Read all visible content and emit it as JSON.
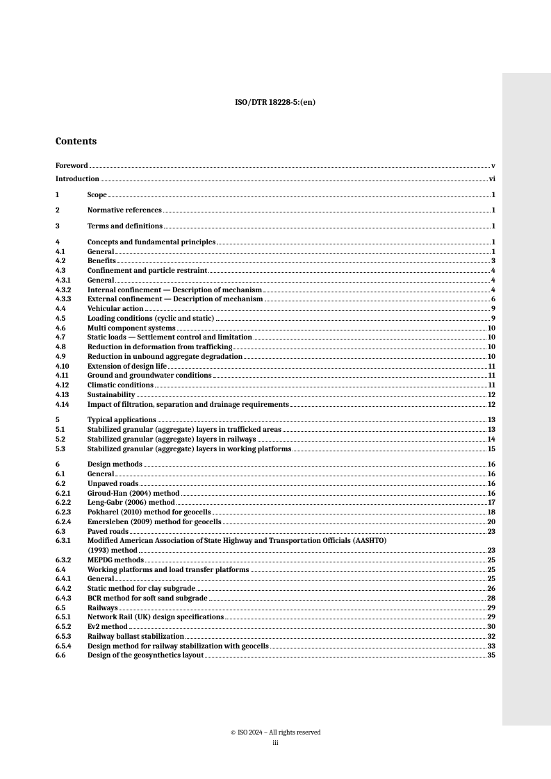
{
  "docNumber": "ISO/DTR 18228-5:(en)",
  "contentsHeading": "Contents",
  "footer": {
    "copyright": "© ISO 2024 – All rights reserved",
    "pageNumber": "iii"
  },
  "toc": [
    {
      "type": "row",
      "num": "",
      "title": "Foreword",
      "page": "v"
    },
    {
      "type": "gap-small"
    },
    {
      "type": "row",
      "num": "",
      "title": "Introduction",
      "page": "vi"
    },
    {
      "type": "gap"
    },
    {
      "type": "row",
      "num": "1",
      "title": "Scope",
      "page": "1"
    },
    {
      "type": "gap"
    },
    {
      "type": "row",
      "num": "2",
      "title": "Normative references",
      "page": "1"
    },
    {
      "type": "gap"
    },
    {
      "type": "row",
      "num": "3",
      "title": "Terms and definitions",
      "page": "1"
    },
    {
      "type": "gap"
    },
    {
      "type": "row",
      "num": "4",
      "title": "Concepts and fundamental principles",
      "page": "1"
    },
    {
      "type": "row",
      "num": "4.1",
      "title": "General",
      "page": "1"
    },
    {
      "type": "row",
      "num": "4.2",
      "title": "Benefits",
      "page": "3"
    },
    {
      "type": "row",
      "num": "4.3",
      "title": "Confinement and particle restraint",
      "page": "4"
    },
    {
      "type": "row",
      "num": "4.3.1",
      "title": "General",
      "page": "4"
    },
    {
      "type": "row",
      "num": "4.3.2",
      "title": "Internal confinement — Description of mechanism",
      "page": "4"
    },
    {
      "type": "row",
      "num": "4.3.3",
      "title": "External confinement — Description of mechanism",
      "page": "6"
    },
    {
      "type": "row",
      "num": "4.4",
      "title": "Vehicular action",
      "page": "9"
    },
    {
      "type": "row",
      "num": "4.5",
      "title": "Loading conditions (cyclic and static)",
      "page": "9"
    },
    {
      "type": "row",
      "num": "4.6",
      "title": "Multi component systems",
      "page": "10"
    },
    {
      "type": "row",
      "num": "4.7",
      "title": "Static loads — Settlement control and limitation",
      "page": "10"
    },
    {
      "type": "row",
      "num": "4.8",
      "title": "Reduction in deformation from trafficking",
      "page": "10"
    },
    {
      "type": "row",
      "num": "4.9",
      "title": "Reduction in unbound aggregate degradation",
      "page": "10"
    },
    {
      "type": "row",
      "num": "4.10",
      "title": "Extension of design life",
      "page": "11"
    },
    {
      "type": "row",
      "num": "4.11",
      "title": "Ground and groundwater conditions",
      "page": "11"
    },
    {
      "type": "row",
      "num": "4.12",
      "title": "Climatic conditions",
      "page": "11"
    },
    {
      "type": "row",
      "num": "4.13",
      "title": "Sustainability",
      "page": "12"
    },
    {
      "type": "row",
      "num": "4.14",
      "title": "Impact of filtration, separation and drainage requirements",
      "page": "12"
    },
    {
      "type": "gap"
    },
    {
      "type": "row",
      "num": "5",
      "title": "Typical applications",
      "page": "13"
    },
    {
      "type": "row",
      "num": "5.1",
      "title": "Stabilized granular (aggregate) layers in trafficked areas",
      "page": "13"
    },
    {
      "type": "row",
      "num": "5.2",
      "title": "Stabilized granular (aggregate) layers in railways",
      "page": "14"
    },
    {
      "type": "row",
      "num": "5.3",
      "title": "Stabilized granular (aggregate) layers in working platforms",
      "page": "15"
    },
    {
      "type": "gap"
    },
    {
      "type": "row",
      "num": "6",
      "title": "Design methods",
      "page": "16"
    },
    {
      "type": "row",
      "num": "6.1",
      "title": "General",
      "page": "16"
    },
    {
      "type": "row",
      "num": "6.2",
      "title": "Unpaved roads",
      "page": "16"
    },
    {
      "type": "row",
      "num": "6.2.1",
      "title": "Giroud-Han (2004) method",
      "page": "16"
    },
    {
      "type": "row",
      "num": "6.2.2",
      "title": "Leng-Gabr (2006) method",
      "page": "17"
    },
    {
      "type": "row",
      "num": "6.2.3",
      "title": "Pokharel (2010) method for geocells",
      "page": "18"
    },
    {
      "type": "row",
      "num": "6.2.4",
      "title": "Emersleben (2009) method for geocells",
      "page": "20"
    },
    {
      "type": "row",
      "num": "6.3",
      "title": "Paved roads",
      "page": "23"
    },
    {
      "type": "wrap",
      "num": "6.3.1",
      "line1": "Modified American Association of State Highway and Transportation Officials (AASHTO)",
      "line2": "(1993) method",
      "page": "23"
    },
    {
      "type": "row",
      "num": "6.3.2",
      "title": "MEPDG methods",
      "page": "25"
    },
    {
      "type": "row",
      "num": "6.4",
      "title": "Working platforms and load transfer platforms",
      "page": "25"
    },
    {
      "type": "row",
      "num": "6.4.1",
      "title": "General",
      "page": "25"
    },
    {
      "type": "row",
      "num": "6.4.2",
      "title": "Static method for clay subgrade",
      "page": "26"
    },
    {
      "type": "row",
      "num": "6.4.3",
      "title": "BCR method for soft sand subgrade",
      "page": "28"
    },
    {
      "type": "row",
      "num": "6.5",
      "title": "Railways",
      "page": "29"
    },
    {
      "type": "row",
      "num": "6.5.1",
      "title": "Network Rail (UK) design specifications",
      "page": "29"
    },
    {
      "type": "row",
      "num": "6.5.2",
      "title": "Ev2 method",
      "page": "30"
    },
    {
      "type": "row",
      "num": "6.5.3",
      "title": "Railway ballast stabilization",
      "page": "32"
    },
    {
      "type": "row",
      "num": "6.5.4",
      "title": "Design method for railway stabilization with geocells",
      "page": "33"
    },
    {
      "type": "row",
      "num": "6.6",
      "title": "Design of the geosynthetics layout",
      "page": "35"
    }
  ]
}
